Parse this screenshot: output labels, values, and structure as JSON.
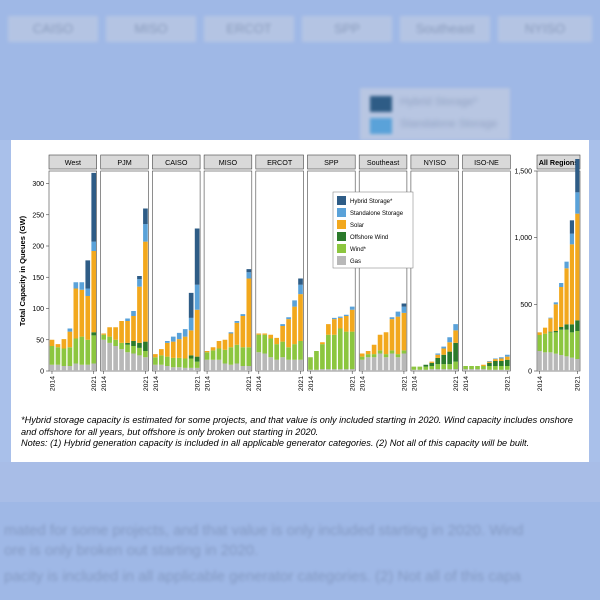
{
  "chart_data": {
    "type": "bar",
    "stacked": true,
    "ylabel": "Total Capacity in Queues (GW)",
    "years": [
      "2014",
      "2015",
      "2016",
      "2017",
      "2018",
      "2019",
      "2020",
      "2021"
    ],
    "x_tick_labels": [
      "2014",
      "2021"
    ],
    "legend": [
      {
        "name": "Hybrid Storage*",
        "color": "#2e5c86"
      },
      {
        "name": "Standalone Storage",
        "color": "#5aa2d9"
      },
      {
        "name": "Solar",
        "color": "#f2a81d"
      },
      {
        "name": "Offshore Wind",
        "color": "#2b7a2b"
      },
      {
        "name": "Wind*",
        "color": "#8cc63f"
      },
      {
        "name": "Gas",
        "color": "#b8b8b8"
      }
    ],
    "regional_ylim": [
      0,
      320
    ],
    "regional_yticks": [
      "0",
      "50",
      "100",
      "150",
      "200",
      "250",
      "300"
    ],
    "all_ylim": [
      0,
      1500
    ],
    "all_yticks": [
      "0",
      "500",
      "1,000",
      "1,500"
    ],
    "regions": [
      {
        "name": "West",
        "series": {
          "gas": [
            10,
            10,
            8,
            8,
            12,
            10,
            10,
            12
          ],
          "wind": [
            30,
            28,
            28,
            30,
            40,
            45,
            40,
            45
          ],
          "offshore": [
            0,
            0,
            0,
            0,
            0,
            0,
            0,
            5
          ],
          "solar": [
            10,
            5,
            15,
            25,
            80,
            75,
            70,
            130
          ],
          "standalone": [
            0,
            0,
            0,
            5,
            10,
            12,
            12,
            15
          ],
          "hybrid": [
            0,
            0,
            0,
            0,
            0,
            0,
            45,
            110
          ]
        }
      },
      {
        "name": "PJM",
        "series": {
          "gas": [
            50,
            45,
            40,
            35,
            30,
            28,
            25,
            22
          ],
          "wind": [
            8,
            10,
            10,
            10,
            12,
            12,
            12,
            10
          ],
          "offshore": [
            0,
            0,
            0,
            0,
            3,
            8,
            8,
            15
          ],
          "solar": [
            2,
            15,
            20,
            35,
            35,
            40,
            90,
            160
          ],
          "standalone": [
            0,
            0,
            0,
            0,
            4,
            8,
            12,
            28
          ],
          "hybrid": [
            0,
            0,
            0,
            0,
            0,
            0,
            5,
            25
          ]
        }
      },
      {
        "name": "CAISO",
        "series": {
          "gas": [
            10,
            10,
            8,
            6,
            6,
            5,
            5,
            5
          ],
          "wind": [
            12,
            15,
            15,
            15,
            15,
            15,
            15,
            10
          ],
          "offshore": [
            0,
            0,
            0,
            0,
            0,
            0,
            5,
            8
          ],
          "solar": [
            5,
            10,
            22,
            26,
            30,
            35,
            40,
            75
          ],
          "standalone": [
            0,
            0,
            3,
            8,
            10,
            12,
            20,
            40
          ],
          "hybrid": [
            0,
            0,
            0,
            0,
            0,
            0,
            40,
            90
          ]
        }
      },
      {
        "name": "MISO",
        "series": {
          "gas": [
            18,
            18,
            18,
            12,
            10,
            12,
            8,
            8
          ],
          "wind": [
            12,
            15,
            18,
            22,
            28,
            30,
            30,
            30
          ],
          "offshore": [
            0,
            0,
            0,
            0,
            0,
            0,
            0,
            0
          ],
          "solar": [
            2,
            5,
            12,
            16,
            22,
            35,
            50,
            110
          ],
          "standalone": [
            0,
            0,
            0,
            0,
            2,
            3,
            3,
            10
          ],
          "hybrid": [
            0,
            0,
            0,
            0,
            0,
            0,
            0,
            5
          ]
        }
      },
      {
        "name": "ERCOT",
        "series": {
          "gas": [
            30,
            28,
            22,
            18,
            22,
            18,
            18,
            18
          ],
          "wind": [
            28,
            30,
            30,
            25,
            25,
            20,
            25,
            30
          ],
          "offshore": [
            0,
            0,
            0,
            0,
            0,
            0,
            0,
            0
          ],
          "solar": [
            2,
            2,
            6,
            10,
            25,
            45,
            60,
            75
          ],
          "standalone": [
            0,
            0,
            0,
            0,
            3,
            3,
            10,
            15
          ],
          "hybrid": [
            0,
            0,
            0,
            0,
            0,
            0,
            0,
            10
          ]
        }
      },
      {
        "name": "SPP",
        "series": {
          "gas": [
            2,
            2,
            3,
            3,
            3,
            3,
            3,
            3
          ],
          "wind": [
            20,
            30,
            40,
            55,
            55,
            65,
            60,
            60
          ],
          "offshore": [
            0,
            0,
            0,
            0,
            0,
            0,
            0,
            0
          ],
          "solar": [
            0,
            0,
            3,
            17,
            25,
            17,
            25,
            35
          ],
          "standalone": [
            0,
            0,
            0,
            0,
            2,
            2,
            2,
            5
          ],
          "hybrid": [
            0,
            0,
            0,
            0,
            0,
            0,
            0,
            0
          ]
        }
      },
      {
        "name": "Southeast",
        "series": {
          "gas": [
            18,
            22,
            22,
            28,
            22,
            28,
            22,
            28
          ],
          "wind": [
            5,
            5,
            5,
            5,
            5,
            5,
            5,
            5
          ],
          "offshore": [
            0,
            0,
            0,
            0,
            0,
            0,
            0,
            0
          ],
          "solar": [
            5,
            5,
            15,
            25,
            35,
            50,
            60,
            60
          ],
          "standalone": [
            0,
            0,
            0,
            0,
            0,
            3,
            8,
            10
          ],
          "hybrid": [
            0,
            0,
            0,
            0,
            0,
            0,
            0,
            5
          ]
        }
      },
      {
        "name": "NYISO",
        "series": {
          "gas": [
            2,
            2,
            2,
            3,
            3,
            3,
            3,
            3
          ],
          "wind": [
            5,
            5,
            5,
            5,
            8,
            8,
            8,
            12
          ],
          "offshore": [
            0,
            0,
            3,
            5,
            10,
            15,
            20,
            30
          ],
          "solar": [
            0,
            0,
            0,
            2,
            5,
            10,
            15,
            20
          ],
          "standalone": [
            0,
            0,
            0,
            0,
            2,
            3,
            8,
            10
          ],
          "hybrid": [
            0,
            0,
            0,
            0,
            0,
            0,
            0,
            0
          ]
        }
      },
      {
        "name": "ISO-NE",
        "series": {
          "gas": [
            3,
            3,
            3,
            3,
            2,
            2,
            2,
            2
          ],
          "wind": [
            5,
            5,
            5,
            5,
            6,
            6,
            6,
            6
          ],
          "offshore": [
            0,
            0,
            0,
            0,
            5,
            8,
            8,
            10
          ],
          "solar": [
            0,
            0,
            0,
            2,
            2,
            3,
            4,
            5
          ],
          "standalone": [
            0,
            0,
            0,
            0,
            1,
            1,
            2,
            3
          ],
          "hybrid": [
            0,
            0,
            0,
            0,
            0,
            0,
            0,
            0
          ]
        }
      },
      {
        "name": "All Regions",
        "series": {
          "gas": [
            150,
            140,
            140,
            130,
            120,
            110,
            100,
            90
          ],
          "wind": [
            120,
            140,
            150,
            160,
            190,
            200,
            190,
            210
          ],
          "offshore": [
            0,
            0,
            5,
            10,
            20,
            40,
            60,
            80
          ],
          "solar": [
            20,
            45,
            100,
            200,
            300,
            420,
            600,
            800
          ],
          "standalone": [
            0,
            0,
            5,
            15,
            30,
            50,
            80,
            160
          ],
          "hybrid": [
            0,
            0,
            0,
            0,
            0,
            0,
            100,
            250
          ]
        }
      }
    ],
    "footnote_1": "*Hybrid storage capacity is estimated for some projects, and that value is only included starting in 2020. Wind capacity includes onshore and offshore for all years, but offshore is only broken out starting in 2020.",
    "footnote_2": "Notes: (1) Hybrid generation capacity is included in all applicable generator categories. (2) Not all of this capacity will be built."
  },
  "background": {
    "tabs": [
      "CAISO",
      "MISO",
      "ERCOT",
      "SPP",
      "Southeast",
      "NYISO"
    ],
    "legend_items": [
      "Hybrid Storage*",
      "Standalone Storage"
    ],
    "line_1": "mated for some projects, and that value is only included starting in 2020. Wind",
    "line_2": "ore is only broken out starting in 2020.",
    "line_3": "pacity is included in all applicable generator categories. (2) Not all of this capa"
  }
}
